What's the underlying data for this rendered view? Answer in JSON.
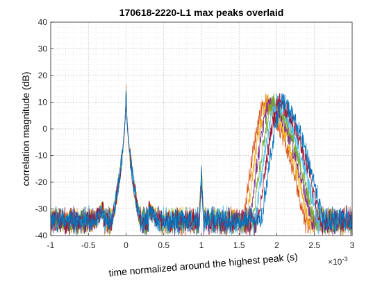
{
  "chart_data": {
    "type": "line",
    "title": "170618-2220-L1 max peaks overlaid",
    "xlabel": "time normalized around the highest peak (s)",
    "ylabel": "correlation magnitude (dB)",
    "x_exponent_label": "×10",
    "x_exponent_power": "-3",
    "xlim": [
      -0.001,
      0.003
    ],
    "ylim": [
      -40,
      40
    ],
    "x_tick_labels": [
      "-1",
      "-0.5",
      "0",
      "0.5",
      "1",
      "1.5",
      "2",
      "2.5",
      "3"
    ],
    "x_tick_values": [
      -0.001,
      -0.0005,
      0,
      0.0005,
      0.001,
      0.0015,
      0.002,
      0.0025,
      0.003
    ],
    "y_ticks": [
      -40,
      -30,
      -20,
      -10,
      0,
      10,
      20,
      30,
      40
    ],
    "grid": true,
    "minor_grid": true,
    "series_colors": [
      "#0072BD",
      "#D95319",
      "#EDB120",
      "#7E2F8E",
      "#77AC30",
      "#4DBEEE",
      "#A2142F"
    ],
    "features": [
      {
        "label": "main peak",
        "x": 0,
        "y": 17
      },
      {
        "label": "small peak",
        "x": 0.001,
        "y": -17
      },
      {
        "label": "late peak cluster",
        "x": 0.002,
        "y": 13
      }
    ]
  }
}
